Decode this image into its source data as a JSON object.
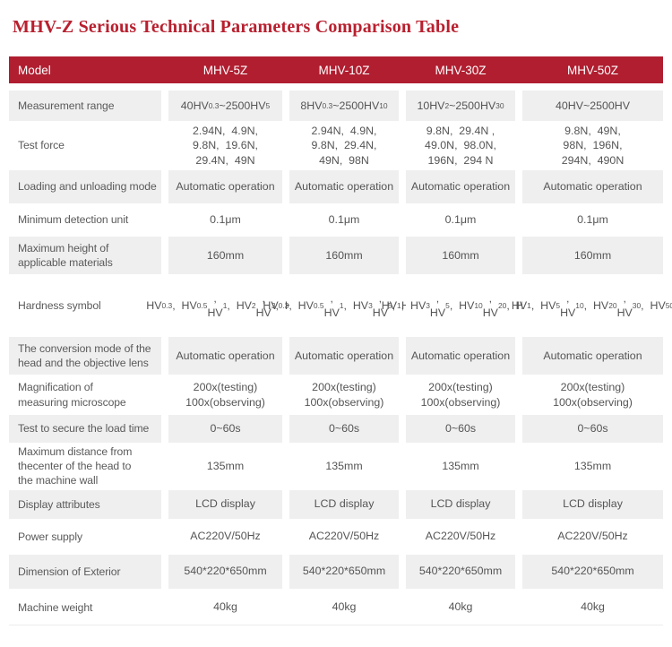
{
  "page_title": "MHV-Z Serious Technical Parameters Comparison Table",
  "colors": {
    "title_red": "#b8202f",
    "header_bg": "#b01e30",
    "shaded_row_bg": "#efeff0",
    "body_text": "#555555"
  },
  "table": {
    "columns": [
      "Model",
      "MHV-5Z",
      "MHV-10Z",
      "MHV-30Z",
      "MHV-50Z"
    ],
    "rows": [
      {
        "label_lines": [
          "Measurement range"
        ],
        "values": [
          [
            "40HV_{0.3}~2500HV_{5}"
          ],
          [
            "8HV_{0.3}~2500HV_{10}"
          ],
          [
            "10HV_{2}~2500HV_{30}"
          ],
          [
            "40HV~2500HV"
          ]
        ]
      },
      {
        "label_lines": [
          "Test force"
        ],
        "values": [
          [
            "2.94N,  4.9N,",
            "9.8N,  19.6N,",
            "29.4N,  49N"
          ],
          [
            "2.94N,  4.9N,",
            "9.8N,  29.4N,",
            "49N,  98N"
          ],
          [
            "9.8N,  29.4N ,",
            "49.0N,  98.0N,",
            "196N,  294 N"
          ],
          [
            "9.8N,  49N,",
            "98N,  196N,",
            "294N,  490N"
          ]
        ]
      },
      {
        "label_lines": [
          "Loading and unloading mode"
        ],
        "values": [
          [
            "Automatic operation"
          ],
          [
            "Automatic operation"
          ],
          [
            "Automatic operation"
          ],
          [
            "Automatic operation"
          ]
        ]
      },
      {
        "label_lines": [
          "Minimum detection unit"
        ],
        "values": [
          [
            "0.1μm"
          ],
          [
            "0.1μm"
          ],
          [
            "0.1μm"
          ],
          [
            "0.1μm"
          ]
        ]
      },
      {
        "label_lines": [
          "Maximum height of",
          "applicable materials"
        ],
        "values": [
          [
            "160mm"
          ],
          [
            "160mm"
          ],
          [
            "160mm"
          ],
          [
            "160mm"
          ]
        ]
      },
      {
        "label_lines": [
          "Hardness symbol"
        ],
        "values": [
          [
            "HV_{0.3},  HV_{0.5},",
            "HV_{1},  HV_{2},",
            "HV_{3},  HV_{5}"
          ],
          [
            "HV_{0.3},  HV_{0.5},",
            "HV_{1},  HV_{3},",
            "HV_{5},  HV_{10}"
          ],
          [
            "HV_{1},  HV_{3},",
            "HV_{5},  HV_{10},",
            "HV_{20},  HV_{30}"
          ],
          [
            "HV_{1},  HV_{5},",
            "HV_{10},  HV_{20},",
            "HV_{30},  HV_{50}"
          ]
        ]
      },
      {
        "label_lines": [
          "The conversion mode of the",
          "head and the objective lens"
        ],
        "values": [
          [
            "Automatic operation"
          ],
          [
            "Automatic operation"
          ],
          [
            "Automatic operation"
          ],
          [
            "Automatic operation"
          ]
        ]
      },
      {
        "label_lines": [
          "Magnification of",
          "measuring microscope"
        ],
        "values": [
          [
            "200x(testing)",
            "100x(observing)"
          ],
          [
            "200x(testing)",
            "100x(observing)"
          ],
          [
            "200x(testing)",
            "100x(observing)"
          ],
          [
            "200x(testing)",
            "100x(observing)"
          ]
        ]
      },
      {
        "label_lines": [
          "Test to secure the load time"
        ],
        "values": [
          [
            "0~60s"
          ],
          [
            "0~60s"
          ],
          [
            "0~60s"
          ],
          [
            "0~60s"
          ]
        ]
      },
      {
        "label_lines": [
          "Maximum distance from",
          "thecenter of the head to",
          "the machine wall"
        ],
        "values": [
          [
            "135mm"
          ],
          [
            "135mm"
          ],
          [
            "135mm"
          ],
          [
            "135mm"
          ]
        ]
      },
      {
        "label_lines": [
          "Display attributes"
        ],
        "values": [
          [
            "LCD display"
          ],
          [
            "LCD display"
          ],
          [
            "LCD display"
          ],
          [
            "LCD display"
          ]
        ]
      },
      {
        "label_lines": [
          "Power supply"
        ],
        "values": [
          [
            "AC220V/50Hz"
          ],
          [
            "AC220V/50Hz"
          ],
          [
            "AC220V/50Hz"
          ],
          [
            "AC220V/50Hz"
          ]
        ]
      },
      {
        "label_lines": [
          "Dimension of Exterior"
        ],
        "values": [
          [
            "540*220*650mm"
          ],
          [
            "540*220*650mm"
          ],
          [
            "540*220*650mm"
          ],
          [
            "540*220*650mm"
          ]
        ]
      },
      {
        "label_lines": [
          "Machine weight"
        ],
        "values": [
          [
            "40kg"
          ],
          [
            "40kg"
          ],
          [
            "40kg"
          ],
          [
            "40kg"
          ]
        ]
      }
    ]
  }
}
